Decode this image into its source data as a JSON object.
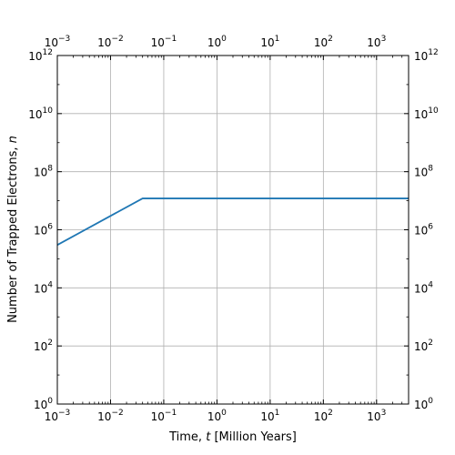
{
  "chart_data": {
    "type": "line",
    "xlabel_prefix": "Time, ",
    "xlabel_var": "t",
    "xlabel_suffix": " [Million Years]",
    "ylabel_prefix": "Number of Trapped Electrons, ",
    "ylabel_var": "n",
    "x_scale": "log",
    "y_scale": "log",
    "xlim": [
      0.001,
      4000
    ],
    "ylim": [
      1,
      1000000000000
    ],
    "x_ticks": [
      {
        "base": "10",
        "exp": "−3",
        "value": 0.001
      },
      {
        "base": "10",
        "exp": "−2",
        "value": 0.01
      },
      {
        "base": "10",
        "exp": "−1",
        "value": 0.1
      },
      {
        "base": "10",
        "exp": "0",
        "value": 1
      },
      {
        "base": "10",
        "exp": "1",
        "value": 10
      },
      {
        "base": "10",
        "exp": "2",
        "value": 100
      },
      {
        "base": "10",
        "exp": "3",
        "value": 1000
      }
    ],
    "y_ticks": [
      {
        "base": "10",
        "exp": "0",
        "value": 1
      },
      {
        "base": "10",
        "exp": "2",
        "value": 100
      },
      {
        "base": "10",
        "exp": "4",
        "value": 10000
      },
      {
        "base": "10",
        "exp": "6",
        "value": 1000000
      },
      {
        "base": "10",
        "exp": "8",
        "value": 100000000
      },
      {
        "base": "10",
        "exp": "10",
        "value": 10000000000
      },
      {
        "base": "10",
        "exp": "12",
        "value": 1000000000000
      }
    ],
    "grid": true,
    "ticks_on_all_sides": true,
    "series": [
      {
        "color": "#1f77b4",
        "x": [
          0.001,
          0.04,
          4000
        ],
        "y": [
          300000,
          12000000,
          12000000
        ]
      }
    ]
  }
}
